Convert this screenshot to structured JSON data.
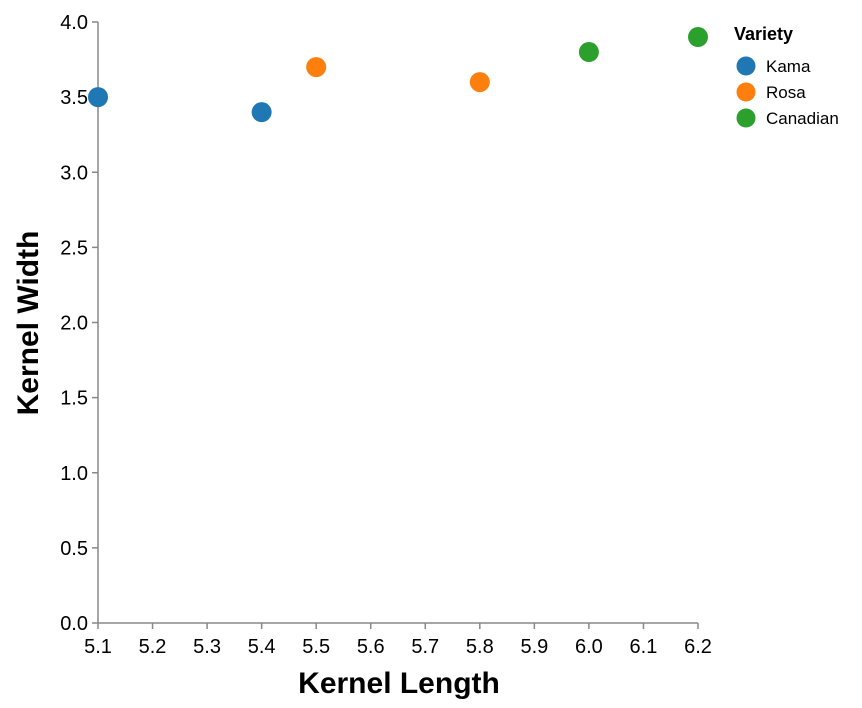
{
  "chart_data": {
    "type": "scatter",
    "xlabel": "Kernel Length",
    "ylabel": "Kernel Width",
    "xlim": [
      5.1,
      6.2
    ],
    "ylim": [
      0.0,
      4.0
    ],
    "x_ticks": [
      "5.1",
      "5.2",
      "5.3",
      "5.4",
      "5.5",
      "5.6",
      "5.7",
      "5.8",
      "5.9",
      "6.0",
      "6.1",
      "6.2"
    ],
    "y_ticks": [
      "0.0",
      "0.5",
      "1.0",
      "1.5",
      "2.0",
      "2.5",
      "3.0",
      "3.5",
      "4.0"
    ],
    "grid": false,
    "legend": {
      "title": "Variety",
      "placement": "top-right"
    },
    "series": [
      {
        "name": "Kama",
        "color": "#1f77b4",
        "points": [
          {
            "x": 5.1,
            "y": 3.5
          },
          {
            "x": 5.4,
            "y": 3.4
          }
        ]
      },
      {
        "name": "Rosa",
        "color": "#ff7f0e",
        "points": [
          {
            "x": 5.5,
            "y": 3.7
          },
          {
            "x": 5.8,
            "y": 3.6
          }
        ]
      },
      {
        "name": "Canadian",
        "color": "#2ca02c",
        "points": [
          {
            "x": 6.0,
            "y": 3.8
          },
          {
            "x": 6.2,
            "y": 3.9
          }
        ]
      }
    ]
  }
}
